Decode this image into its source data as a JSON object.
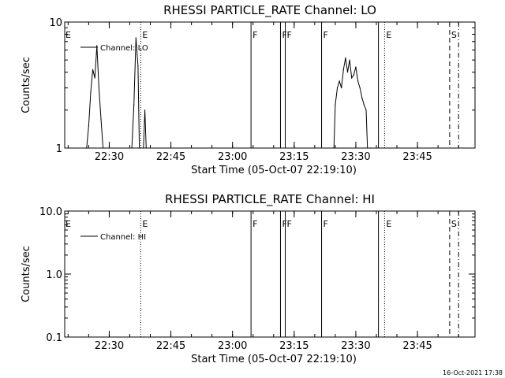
{
  "footer": {
    "timestamp": "16-Oct-2021 17:38"
  },
  "chart_data": [
    {
      "type": "line",
      "title": "RHESSI PARTICLE_RATE Channel: LO",
      "xlabel": "Start Time (05-Oct-07 22:19:10)",
      "ylabel": "Counts/sec",
      "yscale": "log",
      "ylim": [
        1,
        10
      ],
      "xlim": [
        "22:19:10",
        "23:59:00"
      ],
      "x_ticks": [
        "22:30",
        "22:45",
        "23:00",
        "23:15",
        "23:30",
        "23:45"
      ],
      "y_ticks": [
        "1",
        "10"
      ],
      "legend": "Channel: LO",
      "legend_position": "top-left",
      "series": [
        {
          "name": "Channel: LO",
          "x": [
            "22:24:30",
            "22:25:00",
            "22:25:30",
            "22:26:00",
            "22:26:30",
            "22:27:00",
            "22:27:30",
            "22:28:00",
            "22:28:30",
            "22:29:00",
            "22:35:30",
            "22:36:00",
            "22:36:30",
            "22:37:00",
            "22:37:20",
            "22:38:20",
            "22:38:40",
            "22:39:00",
            "23:24:40",
            "23:25:00",
            "23:25:30",
            "23:26:00",
            "23:26:30",
            "23:27:00",
            "23:27:30",
            "23:28:00",
            "23:28:30",
            "23:29:00",
            "23:29:30",
            "23:30:00",
            "23:30:30",
            "23:31:00",
            "23:31:30",
            "23:32:00",
            "23:32:30",
            "23:32:50",
            "23:33:40"
          ],
          "y": [
            1.0,
            1.5,
            2.8,
            4.2,
            3.6,
            6.5,
            3.0,
            1.7,
            1.0,
            1.0,
            1.0,
            2.2,
            7.5,
            4.5,
            1.0,
            1.0,
            2.0,
            1.0,
            1.0,
            2.2,
            3.0,
            3.4,
            3.0,
            4.2,
            5.2,
            4.0,
            5.0,
            3.6,
            3.8,
            4.4,
            3.4,
            3.0,
            2.5,
            2.2,
            2.0,
            1.0,
            1.0
          ]
        }
      ],
      "annotations": [
        {
          "type": "vline",
          "x": "22:37:40",
          "style": "dotted",
          "label": "E"
        },
        {
          "type": "vline",
          "x": "23:04:30",
          "style": "solid",
          "label": "F"
        },
        {
          "type": "vline",
          "x": "23:11:40",
          "style": "solid",
          "label": "F"
        },
        {
          "type": "vline",
          "x": "23:12:50",
          "style": "solid",
          "label": "F"
        },
        {
          "type": "vline",
          "x": "23:21:40",
          "style": "solid",
          "label": "F"
        },
        {
          "type": "vline",
          "x": "23:35:30",
          "style": "solid",
          "label": ""
        },
        {
          "type": "vline",
          "x": "23:37:00",
          "style": "dotted",
          "label": "E"
        },
        {
          "type": "vline",
          "x": "23:52:50",
          "style": "dashed",
          "label": "S"
        },
        {
          "type": "vline",
          "x": "23:55:00",
          "style": "dash-dot",
          "label": ""
        }
      ],
      "edge_labels": [
        "E"
      ]
    },
    {
      "type": "line",
      "title": "RHESSI PARTICLE_RATE Channel: HI",
      "xlabel": "Start Time (05-Oct-07 22:19:10)",
      "ylabel": "Counts/sec",
      "yscale": "log",
      "ylim": [
        0.1,
        10
      ],
      "xlim": [
        "22:19:10",
        "23:59:00"
      ],
      "x_ticks": [
        "22:30",
        "22:45",
        "23:00",
        "23:15",
        "23:30",
        "23:45"
      ],
      "y_ticks": [
        "0.1",
        "1.0",
        "10.0"
      ],
      "legend": "Channel: HI",
      "legend_position": "top-left",
      "series": [
        {
          "name": "Channel: HI",
          "x": [],
          "y": []
        }
      ],
      "annotations": [
        {
          "type": "vline",
          "x": "22:37:40",
          "style": "dotted",
          "label": "E"
        },
        {
          "type": "vline",
          "x": "23:04:30",
          "style": "solid",
          "label": "F"
        },
        {
          "type": "vline",
          "x": "23:11:40",
          "style": "solid",
          "label": "F"
        },
        {
          "type": "vline",
          "x": "23:12:50",
          "style": "solid",
          "label": "F"
        },
        {
          "type": "vline",
          "x": "23:21:40",
          "style": "solid",
          "label": "F"
        },
        {
          "type": "vline",
          "x": "23:35:30",
          "style": "solid",
          "label": ""
        },
        {
          "type": "vline",
          "x": "23:37:00",
          "style": "dotted",
          "label": "E"
        },
        {
          "type": "vline",
          "x": "23:52:50",
          "style": "dashed",
          "label": "S"
        },
        {
          "type": "vline",
          "x": "23:55:00",
          "style": "dash-dot",
          "label": ""
        }
      ],
      "edge_labels": [
        "E"
      ]
    }
  ]
}
